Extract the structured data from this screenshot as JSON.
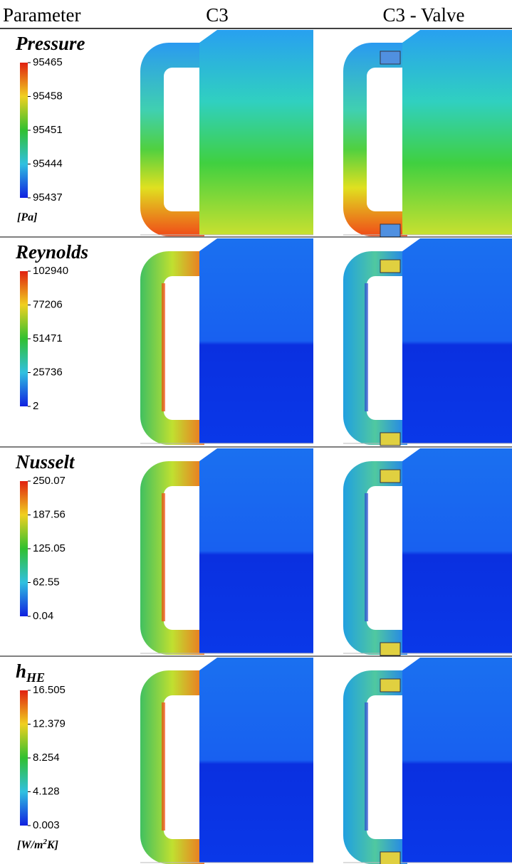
{
  "header": {
    "columns": [
      "Parameter",
      "C3",
      "C3 - Valve"
    ]
  },
  "rows": [
    {
      "name": "Pressure",
      "scale": [
        "95465",
        "95458",
        "95451",
        "95444",
        "95437"
      ],
      "unit": "[Pa]"
    },
    {
      "name": "Reynolds",
      "scale": [
        "102940",
        "77206",
        "51471",
        "25736",
        "2"
      ]
    },
    {
      "name": "Nusselt",
      "scale": [
        "250.07",
        "187.56",
        "125.05",
        "62.55",
        "0.04"
      ]
    },
    {
      "name": "h",
      "name_subscript": "HE",
      "scale": [
        "16.505",
        "12.379",
        "8.254",
        "4.128",
        "0.003"
      ],
      "unit": "[W/m",
      "unit_superscript": "2",
      "unit_suffix": "K]"
    }
  ]
}
